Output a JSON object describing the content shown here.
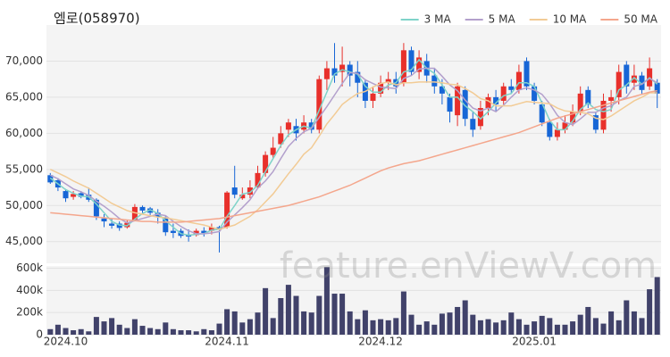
{
  "watermark": "feature.enViewV.com",
  "chart_data": [
    {
      "type": "candlestick",
      "title": "엠로(058970)",
      "open": [
        54200,
        53500,
        52000,
        51200,
        51700,
        51500,
        50800,
        48200,
        47500,
        47500,
        47000,
        48000,
        49800,
        49600,
        49000,
        48400,
        46500,
        46500,
        46000,
        45900,
        46500,
        46500,
        47000,
        47000,
        52500,
        51000,
        51500,
        52500,
        54500,
        57000,
        58500,
        60500,
        61000,
        60500,
        61500,
        60500,
        67500,
        69000,
        68500,
        69500,
        68500,
        67000,
        64500,
        65500,
        67000,
        67500,
        67000,
        71500,
        68500,
        70000,
        68000,
        66500,
        65000,
        62500,
        66000,
        62000,
        61000,
        63500,
        65000,
        64500,
        66500,
        66000,
        70000,
        66500,
        64000,
        61500,
        59500,
        60500,
        61500,
        63000,
        66000,
        62500,
        60500,
        64500,
        65000,
        69500,
        67000,
        68000,
        66500,
        67000
      ],
      "high": [
        54500,
        53800,
        52300,
        52000,
        52000,
        52500,
        51000,
        48800,
        48200,
        47800,
        48000,
        50200,
        50000,
        49800,
        49500,
        48500,
        47500,
        46800,
        46700,
        46800,
        47000,
        47500,
        47200,
        52000,
        55500,
        52500,
        53500,
        55500,
        57500,
        59500,
        61000,
        62000,
        62000,
        62500,
        62000,
        68000,
        70000,
        72500,
        72000,
        70000,
        70000,
        67500,
        66500,
        68000,
        68500,
        68500,
        72500,
        72000,
        71500,
        71000,
        69000,
        67500,
        65500,
        67000,
        66500,
        63000,
        64500,
        65500,
        66000,
        67000,
        67500,
        69500,
        70500,
        67000,
        64500,
        62000,
        61500,
        62500,
        64000,
        66500,
        66500,
        63000,
        65500,
        66000,
        69500,
        70000,
        69500,
        68500,
        70500,
        67500
      ],
      "low": [
        53000,
        52000,
        50500,
        50800,
        51000,
        50500,
        48000,
        47000,
        46800,
        46500,
        46800,
        47800,
        48800,
        48500,
        47500,
        45800,
        45500,
        45500,
        45000,
        45700,
        45700,
        46000,
        43500,
        46800,
        51000,
        50800,
        51000,
        52300,
        54000,
        56500,
        58000,
        59500,
        59000,
        60000,
        60000,
        60000,
        66000,
        67000,
        66500,
        66500,
        65000,
        63500,
        63500,
        65000,
        66000,
        65500,
        66500,
        68000,
        67500,
        67000,
        65500,
        64000,
        61500,
        61000,
        61000,
        59500,
        60500,
        62500,
        63000,
        64000,
        65500,
        65500,
        66000,
        64000,
        61000,
        59000,
        59000,
        60000,
        61000,
        62500,
        63500,
        60000,
        60000,
        63000,
        64000,
        65500,
        66000,
        65500,
        66000,
        63500
      ],
      "close": [
        53200,
        52500,
        51000,
        51600,
        51200,
        50800,
        48500,
        47800,
        47200,
        46900,
        47600,
        49800,
        49300,
        49000,
        48400,
        46300,
        46200,
        45800,
        45700,
        46500,
        46200,
        47000,
        46800,
        51800,
        51500,
        51500,
        52500,
        54500,
        57000,
        58000,
        60000,
        61500,
        60000,
        61500,
        60500,
        67500,
        69000,
        68000,
        69500,
        68000,
        67000,
        64500,
        65500,
        67000,
        67500,
        66500,
        71500,
        68500,
        70500,
        68000,
        66500,
        65500,
        63000,
        66500,
        62000,
        60500,
        63500,
        65000,
        64000,
        66500,
        66000,
        68500,
        66500,
        64500,
        61500,
        59500,
        60500,
        61500,
        63000,
        65500,
        64000,
        60500,
        64500,
        65000,
        68500,
        66500,
        68000,
        66000,
        69000,
        65500
      ],
      "up_color": "#e8302b",
      "down_color": "#1766d6",
      "series": [
        {
          "name": "3 MA",
          "color": "#7fd3c9",
          "values": [
            53800,
            53000,
            52200,
            51700,
            51300,
            51200,
            50200,
            49000,
            47800,
            47300,
            47200,
            48100,
            48900,
            49400,
            48900,
            47900,
            47000,
            46100,
            45900,
            46000,
            46100,
            46600,
            46700,
            48500,
            50000,
            51600,
            51800,
            52800,
            54700,
            56500,
            58300,
            59800,
            60500,
            61000,
            60700,
            63200,
            65700,
            68200,
            68800,
            68500,
            68200,
            66500,
            65700,
            65700,
            66700,
            67000,
            68500,
            68800,
            70200,
            69000,
            68300,
            66700,
            65000,
            65000,
            63800,
            63000,
            62000,
            63000,
            64200,
            65200,
            65500,
            67000,
            67000,
            66500,
            64200,
            61800,
            60500,
            60500,
            61700,
            63300,
            64200,
            63300,
            63000,
            63300,
            66000,
            66700,
            67700,
            66800,
            67700,
            66800
          ]
        },
        {
          "name": "5 MA",
          "color": "#b3a0cc",
          "values": [
            54200,
            53700,
            53000,
            52300,
            51900,
            51400,
            50600,
            49900,
            49100,
            48200,
            47600,
            47900,
            48200,
            48500,
            48800,
            48600,
            47800,
            47100,
            46500,
            46100,
            46100,
            46200,
            46400,
            47700,
            48700,
            49700,
            50800,
            52400,
            53400,
            54700,
            56500,
            58200,
            59300,
            60200,
            60700,
            62200,
            63700,
            65300,
            66900,
            68400,
            68300,
            67400,
            66900,
            66400,
            66300,
            66200,
            67600,
            68000,
            68900,
            69000,
            69000,
            67900,
            66700,
            65900,
            64600,
            63500,
            63100,
            63500,
            63000,
            63900,
            65000,
            66000,
            66300,
            66000,
            65400,
            64100,
            62500,
            61500,
            61200,
            62000,
            62900,
            62900,
            63500,
            63800,
            64500,
            65000,
            66500,
            66800,
            67600,
            67000
          ]
        },
        {
          "name": "10 MA",
          "color": "#f2cb95",
          "values": [
            55000,
            54500,
            54000,
            53400,
            52900,
            52400,
            51700,
            51000,
            50300,
            49800,
            49300,
            49000,
            48800,
            48600,
            48400,
            48300,
            48100,
            47900,
            47700,
            47500,
            47300,
            47000,
            46700,
            47000,
            47300,
            47900,
            48500,
            49400,
            50500,
            51600,
            53000,
            54400,
            55700,
            57100,
            58000,
            59600,
            61300,
            62600,
            64000,
            64800,
            65500,
            65800,
            66400,
            66900,
            67100,
            66700,
            67000,
            67000,
            67100,
            67100,
            67100,
            67000,
            66800,
            66700,
            66200,
            65600,
            64800,
            64500,
            63800,
            63800,
            63800,
            64100,
            64400,
            64300,
            64200,
            64100,
            63500,
            63100,
            63000,
            62900,
            62700,
            62100,
            61900,
            62400,
            63100,
            63800,
            64500,
            65000,
            65600,
            65600
          ]
        },
        {
          "name": "50 MA",
          "color": "#f4a68c",
          "values": [
            49000,
            48900,
            48800,
            48700,
            48600,
            48500,
            48400,
            48300,
            48200,
            48100,
            48000,
            47900,
            47800,
            47800,
            47700,
            47700,
            47700,
            47700,
            47800,
            47900,
            48000,
            48100,
            48200,
            48400,
            48600,
            48800,
            49000,
            49200,
            49400,
            49600,
            49800,
            50000,
            50300,
            50600,
            50900,
            51200,
            51600,
            52000,
            52400,
            52800,
            53300,
            53800,
            54300,
            54800,
            55200,
            55500,
            55800,
            56000,
            56200,
            56500,
            56800,
            57100,
            57400,
            57700,
            58000,
            58300,
            58600,
            58900,
            59200,
            59500,
            59800,
            60100,
            60500,
            60900,
            61300,
            61700,
            62100,
            62400,
            62700,
            63000,
            63300,
            63600,
            63900,
            64200,
            64500,
            64800,
            65100,
            65400,
            65700,
            65900
          ]
        }
      ],
      "ylim": [
        42000,
        75000
      ],
      "yticks": [
        {
          "value": 45000,
          "label": "45,000"
        },
        {
          "value": 50000,
          "label": "50,000"
        },
        {
          "value": 55000,
          "label": "55,000"
        },
        {
          "value": 60000,
          "label": "60,000"
        },
        {
          "value": 65000,
          "label": "65,000"
        },
        {
          "value": 70000,
          "label": "70,000"
        }
      ],
      "grid": true,
      "legend": "top-right"
    },
    {
      "type": "bar",
      "categories": [
        null,
        null,
        "2024.10",
        null,
        null,
        null,
        null,
        null,
        null,
        null,
        null,
        null,
        null,
        null,
        null,
        null,
        null,
        null,
        null,
        null,
        null,
        null,
        null,
        "2024.11",
        null,
        null,
        null,
        null,
        null,
        null,
        null,
        null,
        null,
        null,
        null,
        null,
        null,
        null,
        null,
        null,
        null,
        null,
        null,
        "2024.12",
        null,
        null,
        null,
        null,
        null,
        null,
        null,
        null,
        null,
        null,
        null,
        null,
        null,
        null,
        null,
        null,
        null,
        null,
        null,
        "2025.01",
        null,
        null,
        null,
        null,
        null,
        null,
        null,
        null,
        null,
        null,
        null,
        null,
        null,
        null,
        null,
        null
      ],
      "values": [
        50000,
        90000,
        60000,
        40000,
        50000,
        30000,
        160000,
        120000,
        150000,
        90000,
        60000,
        140000,
        80000,
        60000,
        50000,
        110000,
        50000,
        40000,
        40000,
        30000,
        50000,
        40000,
        100000,
        230000,
        210000,
        110000,
        140000,
        200000,
        420000,
        150000,
        330000,
        450000,
        350000,
        210000,
        200000,
        350000,
        610000,
        370000,
        370000,
        210000,
        140000,
        220000,
        130000,
        140000,
        130000,
        150000,
        390000,
        180000,
        90000,
        120000,
        90000,
        190000,
        200000,
        250000,
        310000,
        180000,
        130000,
        140000,
        110000,
        130000,
        200000,
        140000,
        90000,
        120000,
        170000,
        150000,
        90000,
        90000,
        120000,
        180000,
        250000,
        150000,
        100000,
        210000,
        130000,
        310000,
        210000,
        150000,
        410000,
        520000
      ],
      "color": "#41426a",
      "ylim": [
        0,
        620000
      ],
      "yticks": [
        0,
        {
          "value": 200000,
          "label": "200k"
        },
        {
          "value": 400000,
          "label": "400k"
        },
        {
          "value": 600000,
          "label": "600k"
        }
      ],
      "grid": true
    }
  ]
}
